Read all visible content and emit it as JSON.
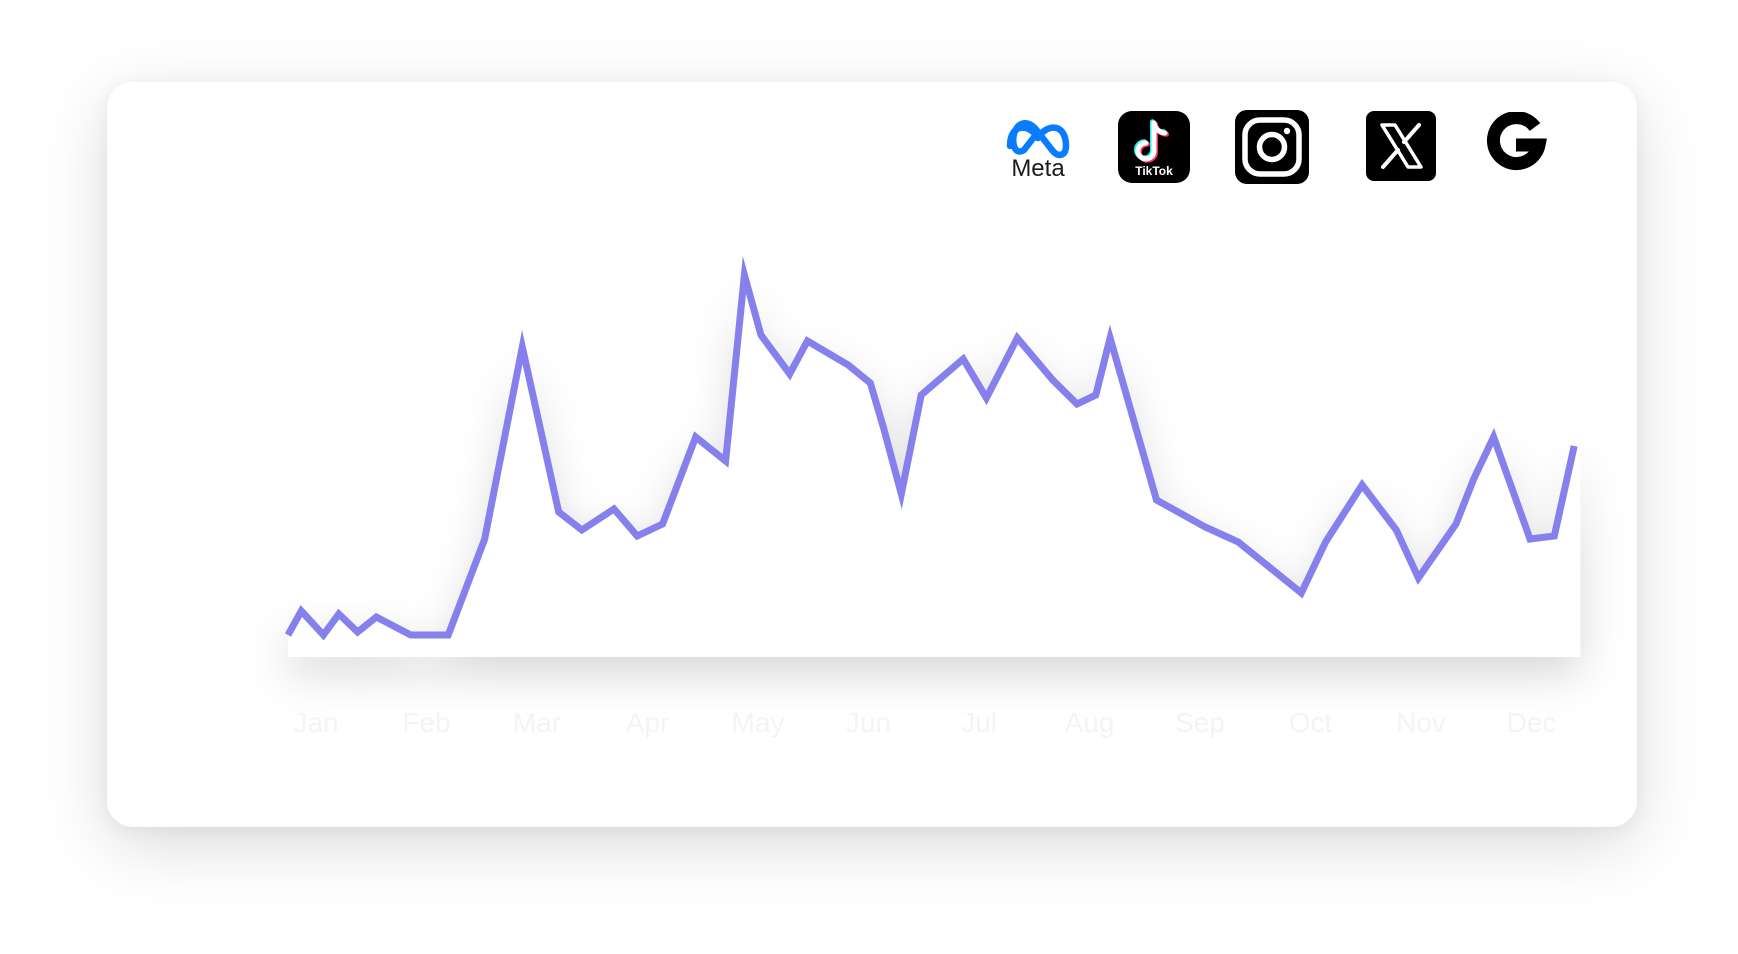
{
  "platforms": [
    {
      "name": "Meta",
      "icon": "meta-logo-icon",
      "label": "Meta",
      "color": "#0a7cff"
    },
    {
      "name": "TikTok",
      "icon": "tiktok-logo-icon",
      "label": "TikTok",
      "color": "#000000"
    },
    {
      "name": "Instagram",
      "icon": "instagram-logo-icon",
      "color": "#000000"
    },
    {
      "name": "X",
      "icon": "x-logo-icon",
      "color": "#000000"
    },
    {
      "name": "Google",
      "icon": "google-logo-icon",
      "color": "#000000"
    }
  ],
  "chart_data": {
    "type": "line",
    "title": "",
    "xlabel": "",
    "ylabel": "",
    "categories": [
      "Jan",
      "Feb",
      "Mar",
      "Apr",
      "May",
      "Jun",
      "Jul",
      "Aug",
      "Sep",
      "Oct",
      "Nov",
      "Dec"
    ],
    "ylim": [
      0,
      100
    ],
    "grid": false,
    "line_color": "#8680ec",
    "series": [
      {
        "x": [
          0.0,
          0.12,
          0.32,
          0.46,
          0.63,
          0.8,
          1.11,
          1.45,
          1.78,
          2.12,
          2.45,
          2.66,
          2.95,
          3.16,
          3.39,
          3.69,
          3.96,
          4.13,
          4.28,
          4.54,
          4.7,
          5.07,
          5.27,
          5.39,
          5.55,
          5.73,
          6.11,
          6.32,
          6.6,
          6.92,
          7.14,
          7.31,
          7.44,
          7.86,
          8.3,
          8.6,
          9.17,
          9.39,
          9.72,
          10.03,
          10.23,
          10.57,
          10.73,
          10.91,
          11.24,
          11.46,
          11.64
        ],
        "y": [
          4,
          12,
          4,
          11,
          5,
          10,
          4,
          4,
          36,
          100,
          45,
          39,
          46,
          37,
          41,
          70,
          62,
          124,
          104,
          91,
          102,
          94,
          88,
          73,
          51,
          84,
          96,
          83,
          103,
          89,
          81,
          84,
          103,
          49,
          40,
          35,
          18,
          35,
          54,
          39,
          23,
          41,
          56,
          70,
          36,
          37,
          67
        ]
      }
    ]
  }
}
